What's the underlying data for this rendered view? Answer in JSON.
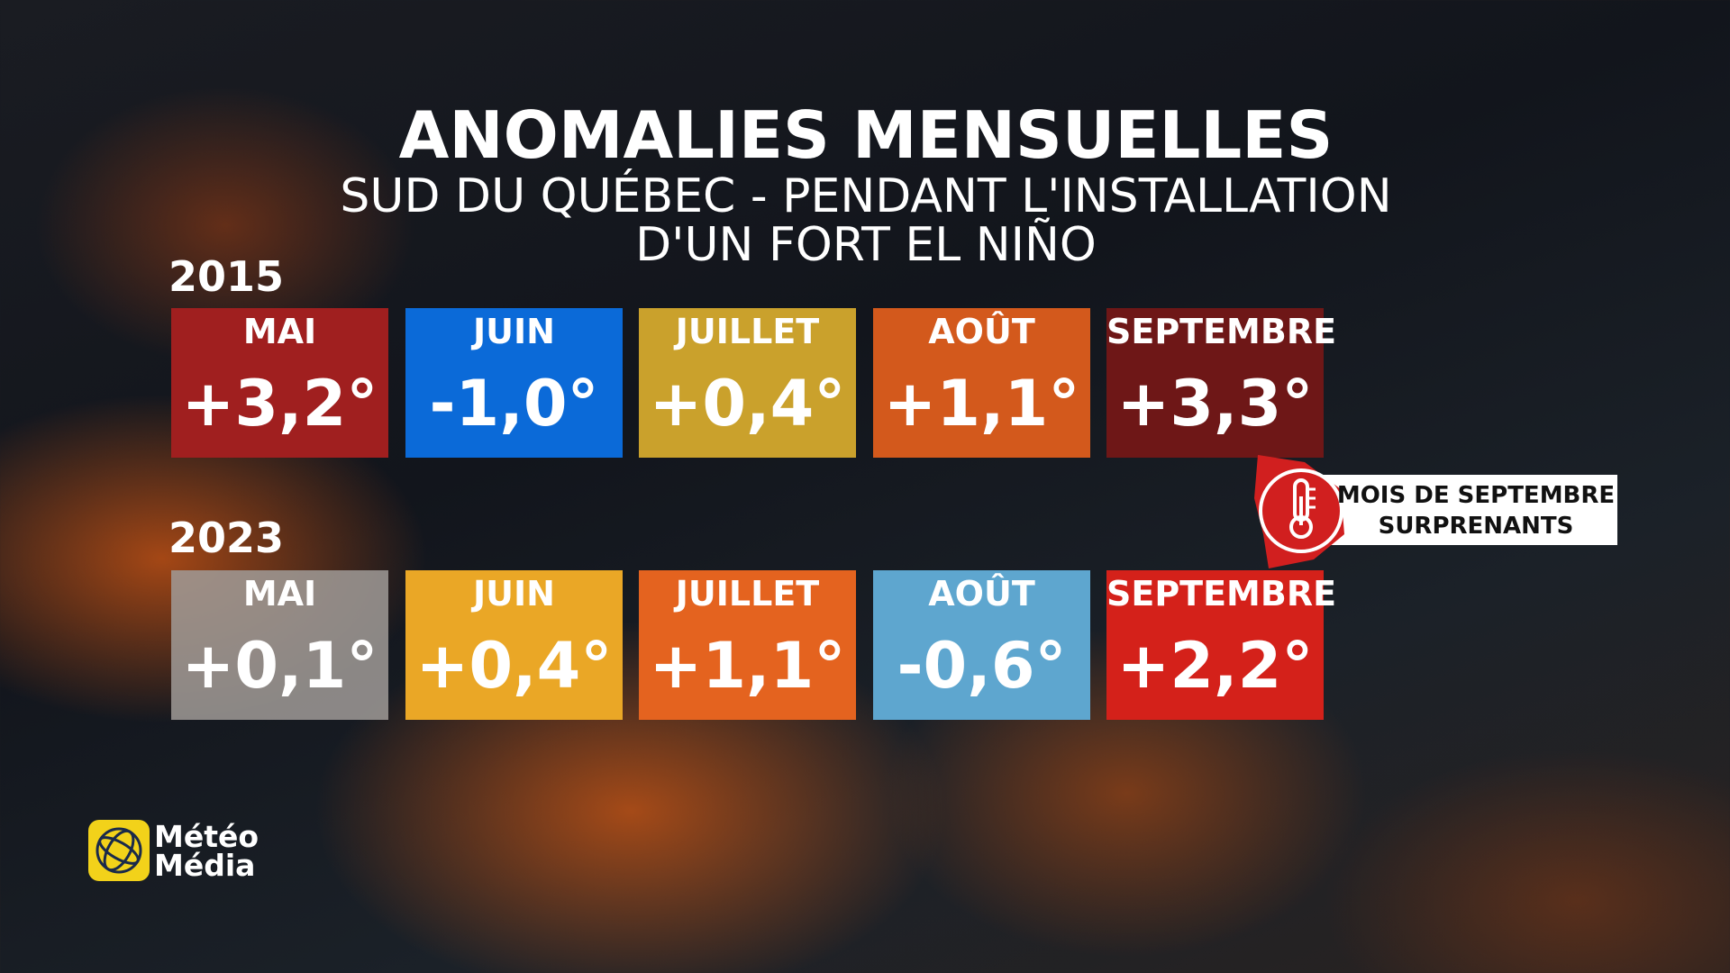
{
  "header": {
    "title": "ANOMALIES MENSUELLES",
    "subtitle": [
      "SUD DU QUÉBEC - PENDANT L'INSTALLATION",
      "D'UN FORT EL NIÑO"
    ]
  },
  "years": [
    {
      "year": "2015",
      "months": [
        {
          "month": "MAI",
          "anomaly": "+3,2°"
        },
        {
          "month": "JUIN",
          "anomaly": "-1,0°"
        },
        {
          "month": "JUILLET",
          "anomaly": "+0,4°"
        },
        {
          "month": "AOÛT",
          "anomaly": "+1,1°"
        },
        {
          "month": "SEPTEMBRE",
          "anomaly": "+3,3°"
        }
      ]
    },
    {
      "year": "2023",
      "months": [
        {
          "month": "MAI",
          "anomaly": "+0,1°"
        },
        {
          "month": "JUIN",
          "anomaly": "+0,4°"
        },
        {
          "month": "JUILLET",
          "anomaly": "+1,1°"
        },
        {
          "month": "AOÛT",
          "anomaly": "-0,6°"
        },
        {
          "month": "SEPTEMBRE",
          "anomaly": "+2,2°"
        }
      ]
    }
  ],
  "callout": {
    "lines": [
      "MOIS DE SEPTEMBRE",
      "SURPRENANTS"
    ]
  },
  "logo": {
    "lines": [
      "Météo",
      "Média"
    ]
  }
}
